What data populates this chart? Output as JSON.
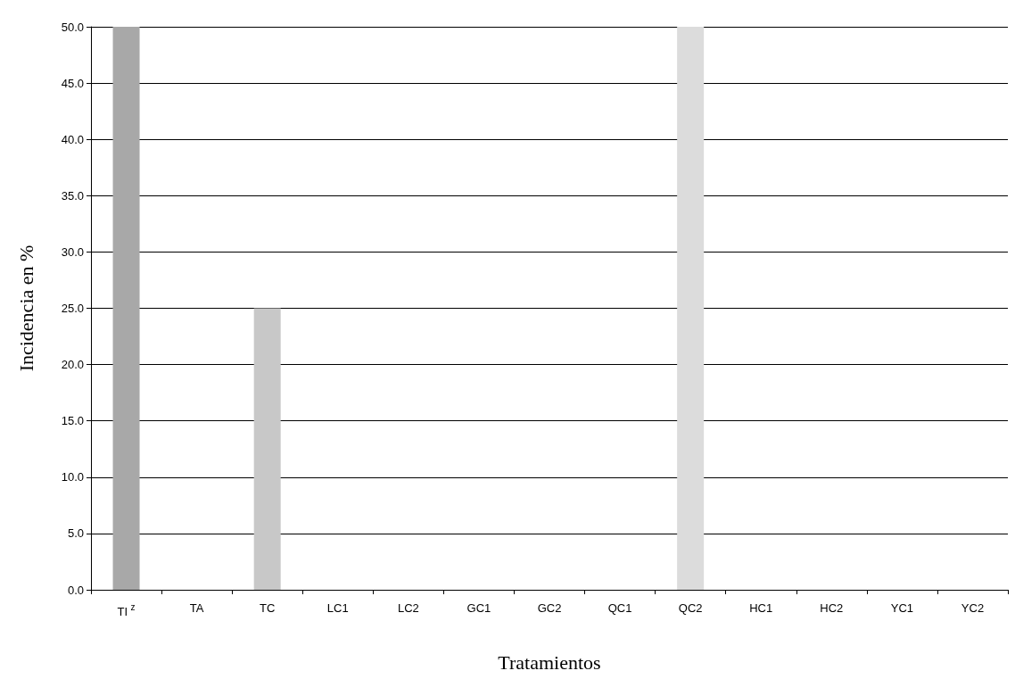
{
  "chart_data": {
    "type": "bar",
    "xlabel": "Tratamientos",
    "ylabel": "Incidencia en %",
    "categories": [
      "TI$^{z}$",
      "TA",
      "TC",
      "LC1",
      "LC2",
      "GC1",
      "GC2",
      "QC1",
      "QC2",
      "HC1",
      "HC2",
      "YC1",
      "YC2"
    ],
    "values": [
      50,
      0,
      25,
      0,
      0,
      0,
      0,
      0,
      50,
      0,
      0,
      0,
      0
    ],
    "colors": [
      "#a8a8a8",
      "#c8c8c8",
      "#c8c8c8",
      "#c8c8c8",
      "#c8c8c8",
      "#c8c8c8",
      "#c8c8c8",
      "#c8c8c8",
      "#dcdcdc",
      "#c8c8c8",
      "#c8c8c8",
      "#c8c8c8",
      "#c8c8c8"
    ],
    "ylim": [
      0,
      50
    ],
    "yticks": [
      {
        "value": 0,
        "label": "0.0"
      },
      {
        "value": 5,
        "label": "5.0"
      },
      {
        "value": 10,
        "label": "10.0"
      },
      {
        "value": 15,
        "label": "15.0"
      },
      {
        "value": 20,
        "label": "20.0"
      },
      {
        "value": 25,
        "label": "25.0"
      },
      {
        "value": 30,
        "label": "30.0"
      },
      {
        "value": 35,
        "label": "35.0"
      },
      {
        "value": 40,
        "label": "40.0"
      },
      {
        "value": 45,
        "label": "45.0"
      },
      {
        "value": 50,
        "label": "50.0"
      }
    ],
    "grid": "y"
  }
}
